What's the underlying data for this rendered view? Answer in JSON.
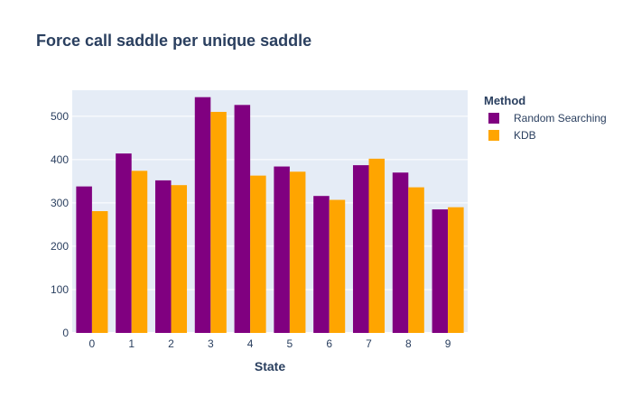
{
  "chart_data": {
    "type": "bar",
    "title": "Force call saddle per unique saddle",
    "xlabel": "State",
    "ylabel": "",
    "categories": [
      "0",
      "1",
      "2",
      "3",
      "4",
      "5",
      "6",
      "7",
      "8",
      "9"
    ],
    "series": [
      {
        "name": "Random Searching",
        "color": "#800080",
        "values": [
          338,
          414,
          352,
          544,
          526,
          384,
          316,
          387,
          370,
          285
        ]
      },
      {
        "name": "KDB",
        "color": "#FFA500",
        "values": [
          281,
          374,
          341,
          510,
          363,
          372,
          307,
          402,
          336,
          290
        ]
      }
    ],
    "ylim": [
      0,
      560
    ],
    "yticks": [
      0,
      100,
      200,
      300,
      400,
      500
    ],
    "grid": true,
    "legend": {
      "title": "Method",
      "position": "top-right"
    },
    "plot_bgcolor": "#E5ECF6"
  }
}
